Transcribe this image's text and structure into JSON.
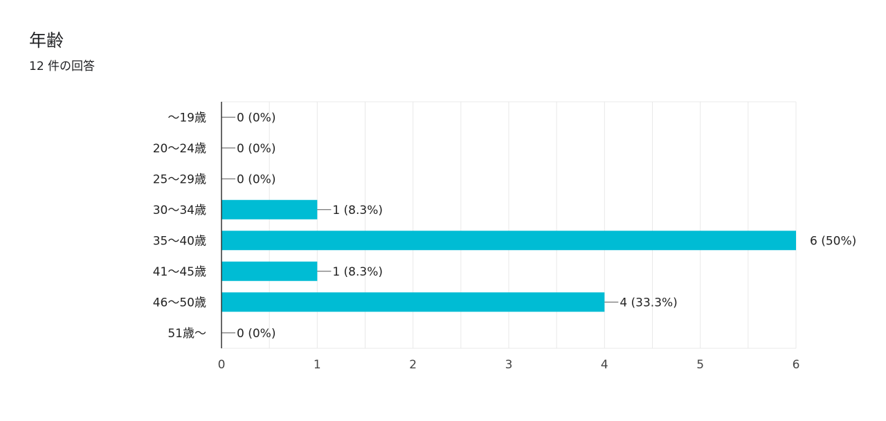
{
  "question": {
    "title": "年齢",
    "response_count": "12 件の回答"
  },
  "colors": {
    "bar": "#00bcd4",
    "grid": "#e8e8e8",
    "axis": "#333333",
    "text": "#222222",
    "tick_text": "#444444"
  },
  "chart_data": {
    "type": "bar",
    "orientation": "horizontal",
    "categories": [
      "～19歳",
      "20～24歳",
      "25～29歳",
      "30～34歳",
      "35～40歳",
      "41～45歳",
      "46～50歳",
      "51歳～"
    ],
    "values": [
      0,
      0,
      0,
      1,
      6,
      1,
      4,
      0
    ],
    "data_labels": [
      "0 (0%)",
      "0 (0%)",
      "0 (0%)",
      "1 (8.3%)",
      "6 (50%)",
      "1 (8.3%)",
      "4 (33.3%)",
      "0 (0%)"
    ],
    "xlim": [
      0,
      6
    ],
    "x_ticks": [
      0,
      1,
      2,
      3,
      4,
      5,
      6
    ],
    "grid": true,
    "legend": "none"
  }
}
